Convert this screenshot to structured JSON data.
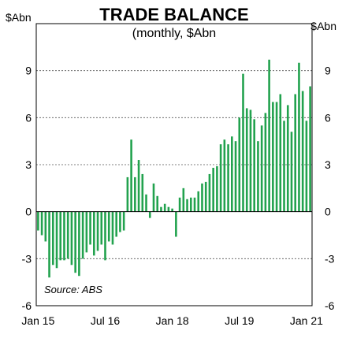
{
  "chart_data": {
    "type": "bar",
    "title": "TRADE BALANCE",
    "subtitle": "(monthly, $Abn",
    "ylabel_left": "$Abn",
    "ylabel_right": "$Abn",
    "source": "Source: ABS",
    "ylim": [
      -6,
      12
    ],
    "yticks": [
      -6,
      -3,
      0,
      3,
      6,
      9
    ],
    "xticks": [
      {
        "label": "Jan 15",
        "index": 0
      },
      {
        "label": "Jul 16",
        "index": 18
      },
      {
        "label": "Jan 18",
        "index": 36
      },
      {
        "label": "Jul 19",
        "index": 54
      },
      {
        "label": "Jan 21",
        "index": 72
      }
    ],
    "grid": true,
    "color": "#22a24e",
    "x_start": "Jan 2015",
    "x_frequency": "monthly",
    "values": [
      -1.2,
      -1.5,
      -1.9,
      -4.2,
      -3.4,
      -3.6,
      -3.1,
      -3.1,
      -3.0,
      -3.4,
      -3.9,
      -4.1,
      -3.0,
      -2.6,
      -2.1,
      -2.8,
      -2.5,
      -2.1,
      -3.1,
      -1.9,
      -2.1,
      -1.6,
      -1.3,
      -1.2,
      2.2,
      4.6,
      2.2,
      3.3,
      2.4,
      1.1,
      -0.4,
      1.8,
      1.0,
      0.3,
      0.5,
      0.3,
      0.2,
      -1.6,
      0.9,
      1.5,
      0.8,
      0.9,
      0.9,
      1.3,
      1.8,
      1.9,
      2.4,
      2.8,
      2.9,
      4.3,
      4.6,
      4.3,
      4.8,
      4.5,
      6.0,
      8.8,
      6.6,
      6.5,
      5.9,
      4.5,
      5.5,
      6.3,
      9.7,
      7.0,
      7.0,
      7.5,
      5.8,
      6.8,
      5.1,
      7.5,
      9.5,
      7.7,
      5.8,
      8.0
    ]
  }
}
